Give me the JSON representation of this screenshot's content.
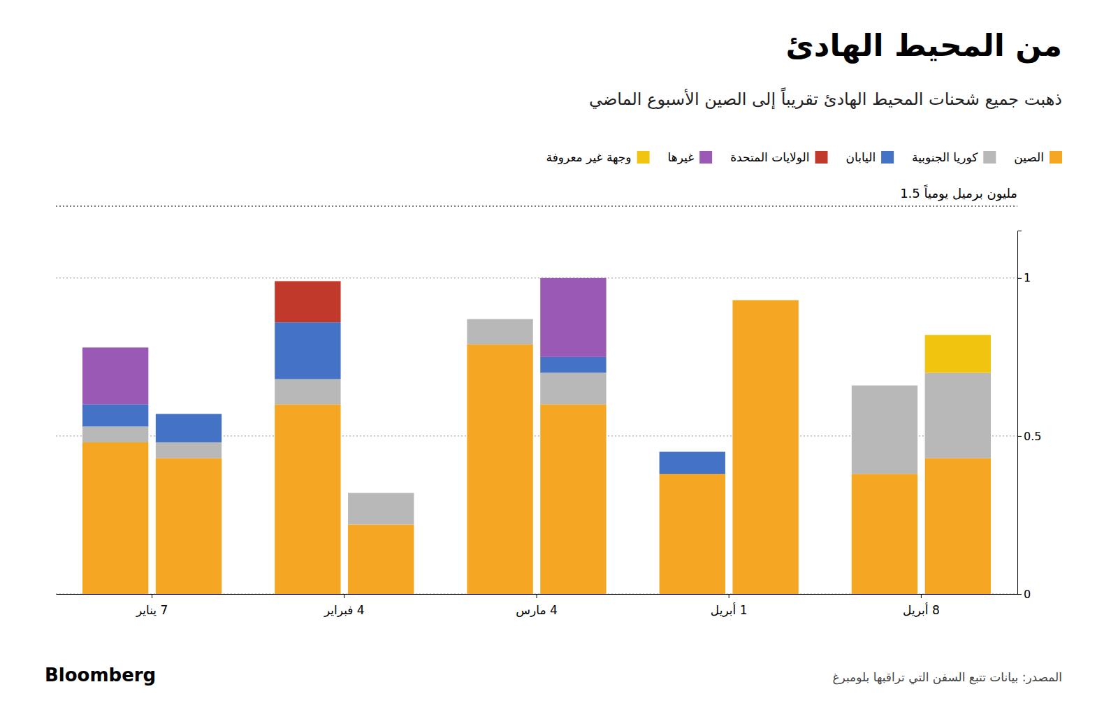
{
  "chart_data": {
    "type": "bar",
    "stacked": true,
    "title": "من المحيط الهادئ",
    "subtitle": "ذهبت جميع شحنات المحيط الهادئ تقريباً إلى الصين الأسبوع الماضي",
    "ylabel": "1.5 مليون برميل يومياً",
    "source_left": "Bloomberg",
    "source_right": "المصدر: بيانات تتبع السفن التي تراقبها بلومبرغ",
    "categories": [
      "7 يناير",
      "4 فبراير",
      "4 مارس",
      "1 أبريل",
      "8 أبريل"
    ],
    "series": [
      {
        "name": "الصين",
        "color": "#F5A623",
        "values": [
          [
            0.48,
            0.43
          ],
          [
            0.6,
            0.22
          ],
          [
            0.79,
            0.6
          ],
          [
            0.38,
            0.93
          ],
          [
            0.38,
            0.43
          ]
        ]
      },
      {
        "name": "كوريا الجنوبية",
        "color": "#B8B8B8",
        "values": [
          [
            0.05,
            0.05
          ],
          [
            0.08,
            0.1
          ],
          [
            0.08,
            0.1
          ],
          [
            0.0,
            0.0
          ],
          [
            0.28,
            0.27
          ]
        ]
      },
      {
        "name": "اليابان",
        "color": "#4472C4",
        "values": [
          [
            0.07,
            0.09
          ],
          [
            0.18,
            0.0
          ],
          [
            0.0,
            0.05
          ],
          [
            0.07,
            0.0
          ],
          [
            0.0,
            0.0
          ]
        ]
      },
      {
        "name": "الولايات المتحدة",
        "color": "#C0392B",
        "values": [
          [
            0.0,
            0.0
          ],
          [
            0.13,
            0.0
          ],
          [
            0.0,
            0.0
          ],
          [
            0.0,
            0.0
          ],
          [
            0.0,
            0.0
          ]
        ]
      },
      {
        "name": "غيرها",
        "color": "#9B59B6",
        "values": [
          [
            0.18,
            0.0
          ],
          [
            0.0,
            0.0
          ],
          [
            0.0,
            0.25
          ],
          [
            0.0,
            0.0
          ],
          [
            0.0,
            0.0
          ]
        ]
      },
      {
        "name": "وجهة غير معروفة",
        "color": "#F1C40F",
        "values": [
          [
            0.0,
            0.0
          ],
          [
            0.0,
            0.0
          ],
          [
            0.0,
            0.0
          ],
          [
            0.0,
            0.0
          ],
          [
            0.0,
            0.12
          ]
        ]
      }
    ],
    "ylim": [
      0,
      1.15
    ],
    "yticks": [
      0,
      0.5,
      1
    ],
    "grid": true,
    "legend": "top"
  }
}
